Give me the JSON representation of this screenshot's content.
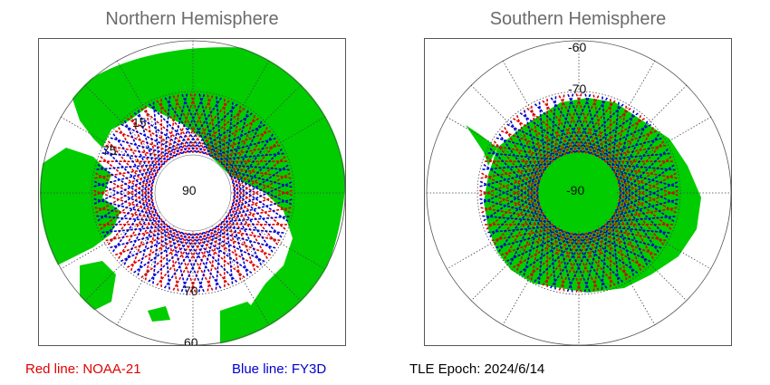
{
  "north": {
    "title": "Northern Hemisphere",
    "lat_labels": {
      "center": "90",
      "ring70": "70",
      "ring60": "60",
      "ring_left1": "75",
      "ring_left2": "15"
    }
  },
  "south": {
    "title": "Southern Hemisphere",
    "lat_labels": {
      "center": "-90",
      "ring70": "-70",
      "ring60": "-60"
    }
  },
  "legend": {
    "red": {
      "text": "Red line: NOAA-21",
      "color": "#e00000"
    },
    "blue": {
      "text": "Blue line: FY3D",
      "color": "#0000d0"
    },
    "tle_epoch": "TLE Epoch: 2024/6/14"
  },
  "colors": {
    "land": "#00cc00",
    "ocean": "#ffffff",
    "track_red": "#e00000",
    "track_blue": "#0000d0",
    "grid": "#444444"
  }
}
